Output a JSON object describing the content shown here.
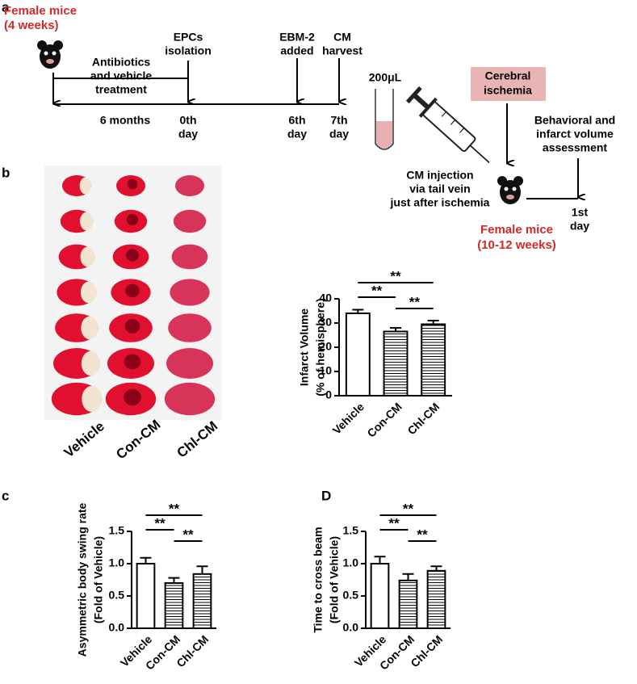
{
  "diagram": {
    "panel": "a",
    "start_mice": [
      "Female mice",
      "(4 weeks)"
    ],
    "treatment": [
      "Antibiotics",
      "and vehicle",
      "treatment"
    ],
    "duration": "6 months",
    "events": [
      {
        "label": [
          "EPCs",
          "isolation"
        ],
        "day": [
          "0th",
          "day"
        ]
      },
      {
        "label": [
          "EBM-2",
          "added"
        ],
        "day": [
          "6th",
          "day"
        ]
      },
      {
        "label": [
          "CM",
          "harvest"
        ],
        "day": [
          "7th",
          "day"
        ]
      }
    ],
    "volume": "200μL",
    "ischemia": [
      "Cerebral",
      "ischemia"
    ],
    "injection": [
      "CM injection",
      "via tail vein",
      "just after ischemia"
    ],
    "assessment": [
      "Behavioral and",
      "infarct volume",
      "assessment"
    ],
    "end_day": [
      "1st",
      "day"
    ],
    "end_mice": [
      "Female mice",
      "(10-12 weeks)"
    ]
  },
  "photos": {
    "panel": "b",
    "groups": [
      "Vehicle",
      "Con-CM",
      "Chl-CM"
    ]
  },
  "chart_data": [
    {
      "type": "bar",
      "y_label": [
        "Infarct Volume",
        "(% of hemisphere)"
      ],
      "categories": [
        "Vehicle",
        "Con-CM",
        "Chl-CM"
      ],
      "values": [
        34,
        26.5,
        29.5
      ],
      "errors": [
        1.5,
        1.5,
        1.5
      ],
      "ylim": [
        0,
        40
      ],
      "yticks": [
        0,
        10,
        20,
        30,
        40
      ],
      "significance": [
        "**",
        "**",
        "**"
      ]
    },
    {
      "type": "bar",
      "panel": "c",
      "y_label": [
        "Asymmetric body swing rate",
        "(Fold of Vehicle)"
      ],
      "categories": [
        "Vehicle",
        "Con-CM",
        "Chl-CM"
      ],
      "values": [
        1.0,
        0.7,
        0.84
      ],
      "errors": [
        0.09,
        0.08,
        0.12
      ],
      "ylim": [
        0,
        1.5
      ],
      "yticks": [
        {
          "value": 0,
          "label": "0.0"
        },
        0.5,
        {
          "value": 1,
          "label": "1.0"
        },
        1.5
      ],
      "significance": [
        "**",
        "**",
        "**"
      ]
    },
    {
      "type": "bar",
      "panel": "D",
      "y_label": [
        "Time to cross beam",
        "(Fold of Vehicle)"
      ],
      "categories": [
        "Vehicle",
        "Con-CM",
        "Chl-CM"
      ],
      "values": [
        1.0,
        0.74,
        0.89
      ],
      "errors": [
        0.11,
        0.1,
        0.07
      ],
      "ylim": [
        0,
        1.5
      ],
      "yticks": [
        {
          "value": 0,
          "label": "0.0"
        },
        0.5,
        {
          "value": 1,
          "label": "1.0"
        },
        1.5
      ],
      "significance": [
        "**",
        "**",
        "**"
      ]
    }
  ]
}
